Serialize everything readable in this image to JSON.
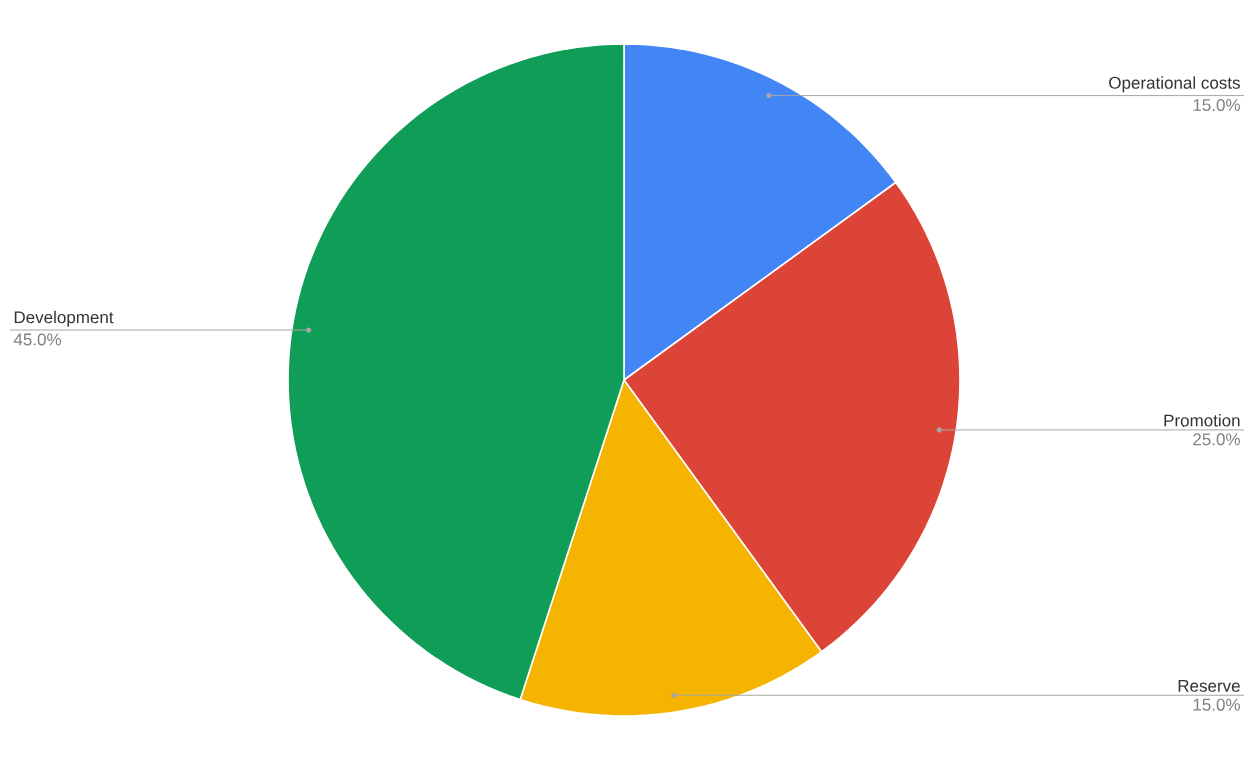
{
  "chart_data": {
    "type": "pie",
    "categories": [
      "Operational costs",
      "Promotion",
      "Reserve",
      "Development"
    ],
    "values": [
      15,
      25,
      15,
      45
    ],
    "value_labels": [
      "15.0%",
      "25.0%",
      "15.0%",
      "45.0%"
    ],
    "colors": [
      "#4285f4",
      "#db4437",
      "#f4b400",
      "#0f9d58"
    ]
  }
}
